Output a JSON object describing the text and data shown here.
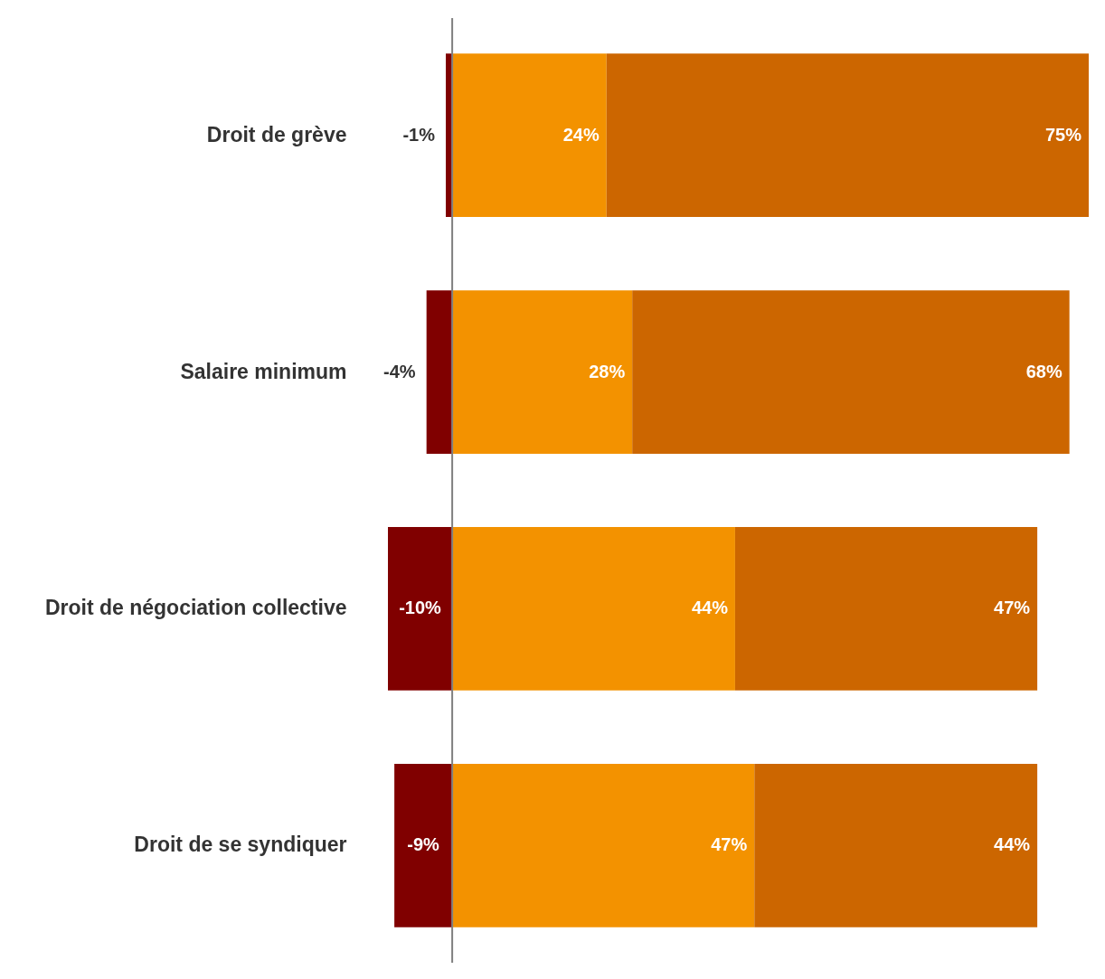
{
  "chart_data": {
    "type": "bar",
    "orientation": "horizontal",
    "stacked": true,
    "categories": [
      "Droit de grève",
      "Salaire minimum",
      "Droit de négociation collective",
      "Droit de se syndiquer"
    ],
    "series": [
      {
        "color": "#800000",
        "values": [
          -1,
          -4,
          -10,
          -9
        ],
        "value_labels": [
          "-1%",
          "-4%",
          "-10%",
          "-9%"
        ]
      },
      {
        "color": "#f39200",
        "values": [
          24,
          28,
          44,
          47
        ],
        "value_labels": [
          "24%",
          "28%",
          "44%",
          "47%"
        ]
      },
      {
        "color": "#cc6600",
        "values": [
          75,
          68,
          47,
          44
        ],
        "value_labels": [
          "75%",
          "68%",
          "47%",
          "44%"
        ]
      }
    ],
    "xlim": [
      -10,
      99
    ],
    "tick_labels": "y",
    "grid": false,
    "ref_lines": [
      {
        "axis": "x",
        "value": 0,
        "color": "#808080"
      }
    ]
  }
}
